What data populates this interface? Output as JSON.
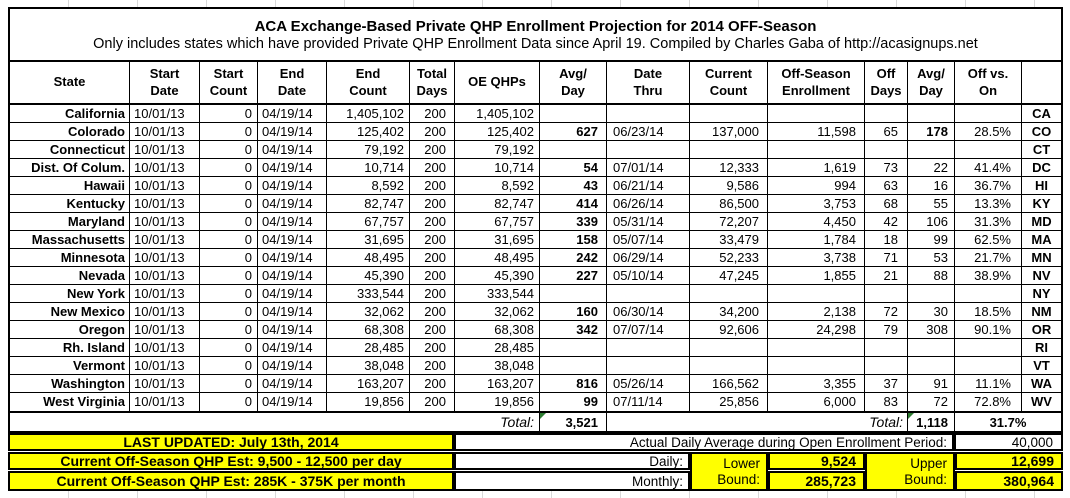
{
  "title": {
    "line1": "ACA Exchange-Based Private QHP Enrollment Projection for 2014 OFF-Season",
    "line2": "Only includes states which have provided Private QHP Enrollment Data since April 19. Compiled by Charles Gaba of http://acasignups.net"
  },
  "table": {
    "columns": [
      "State",
      "Start\nDate",
      "Start\nCount",
      "End\nDate",
      "End\nCount",
      "Total\nDays",
      "OE QHPs",
      "Avg/\nDay",
      "Date\nThru",
      "Current\nCount",
      "Off-Season\nEnrollment",
      "Off\nDays",
      "Avg/\nDay",
      "Off vs.\nOn",
      ""
    ],
    "rows": [
      [
        "California",
        "10/01/13",
        "0",
        "04/19/14",
        "1,405,102",
        "200",
        "1,405,102",
        "",
        "",
        "",
        "",
        "",
        "",
        "",
        "CA"
      ],
      [
        "Colorado",
        "10/01/13",
        "0",
        "04/19/14",
        "125,402",
        "200",
        "125,402",
        "627",
        "06/23/14",
        "137,000",
        "11,598",
        "65",
        "178",
        "28.5%",
        "CO"
      ],
      [
        "Connecticut",
        "10/01/13",
        "0",
        "04/19/14",
        "79,192",
        "200",
        "79,192",
        "",
        "",
        "",
        "",
        "",
        "",
        "",
        "CT"
      ],
      [
        "Dist. Of Colum.",
        "10/01/13",
        "0",
        "04/19/14",
        "10,714",
        "200",
        "10,714",
        "54",
        "07/01/14",
        "12,333",
        "1,619",
        "73",
        "22",
        "41.4%",
        "DC"
      ],
      [
        "Hawaii",
        "10/01/13",
        "0",
        "04/19/14",
        "8,592",
        "200",
        "8,592",
        "43",
        "06/21/14",
        "9,586",
        "994",
        "63",
        "16",
        "36.7%",
        "HI"
      ],
      [
        "Kentucky",
        "10/01/13",
        "0",
        "04/19/14",
        "82,747",
        "200",
        "82,747",
        "414",
        "06/26/14",
        "86,500",
        "3,753",
        "68",
        "55",
        "13.3%",
        "KY"
      ],
      [
        "Maryland",
        "10/01/13",
        "0",
        "04/19/14",
        "67,757",
        "200",
        "67,757",
        "339",
        "05/31/14",
        "72,207",
        "4,450",
        "42",
        "106",
        "31.3%",
        "MD"
      ],
      [
        "Massachusetts",
        "10/01/13",
        "0",
        "04/19/14",
        "31,695",
        "200",
        "31,695",
        "158",
        "05/07/14",
        "33,479",
        "1,784",
        "18",
        "99",
        "62.5%",
        "MA"
      ],
      [
        "Minnesota",
        "10/01/13",
        "0",
        "04/19/14",
        "48,495",
        "200",
        "48,495",
        "242",
        "06/29/14",
        "52,233",
        "3,738",
        "71",
        "53",
        "21.7%",
        "MN"
      ],
      [
        "Nevada",
        "10/01/13",
        "0",
        "04/19/14",
        "45,390",
        "200",
        "45,390",
        "227",
        "05/10/14",
        "47,245",
        "1,855",
        "21",
        "88",
        "38.9%",
        "NV"
      ],
      [
        "New York",
        "10/01/13",
        "0",
        "04/19/14",
        "333,544",
        "200",
        "333,544",
        "",
        "",
        "",
        "",
        "",
        "",
        "",
        "NY"
      ],
      [
        "New Mexico",
        "10/01/13",
        "0",
        "04/19/14",
        "32,062",
        "200",
        "32,062",
        "160",
        "06/30/14",
        "34,200",
        "2,138",
        "72",
        "30",
        "18.5%",
        "NM"
      ],
      [
        "Oregon",
        "10/01/13",
        "0",
        "04/19/14",
        "68,308",
        "200",
        "68,308",
        "342",
        "07/07/14",
        "92,606",
        "24,298",
        "79",
        "308",
        "90.1%",
        "OR"
      ],
      [
        "Rh. Island",
        "10/01/13",
        "0",
        "04/19/14",
        "28,485",
        "200",
        "28,485",
        "",
        "",
        "",
        "",
        "",
        "",
        "",
        "RI"
      ],
      [
        "Vermont",
        "10/01/13",
        "0",
        "04/19/14",
        "38,048",
        "200",
        "38,048",
        "",
        "",
        "",
        "",
        "",
        "",
        "",
        "VT"
      ],
      [
        "Washington",
        "10/01/13",
        "0",
        "04/19/14",
        "163,207",
        "200",
        "163,207",
        "816",
        "05/26/14",
        "166,562",
        "3,355",
        "37",
        "91",
        "11.1%",
        "WA"
      ],
      [
        "West Virginia",
        "10/01/13",
        "0",
        "04/19/14",
        "19,856",
        "200",
        "19,856",
        "99",
        "07/11/14",
        "25,856",
        "6,000",
        "83",
        "72",
        "72.8%",
        "WV"
      ]
    ],
    "emphasis": [
      [
        1,
        12
      ]
    ],
    "totals": {
      "oe_label": "Total:",
      "oe_avg_day": "3,521",
      "off_label": "Total:",
      "off_avg_day": "1,118",
      "off_vs_on": "31.7%"
    }
  },
  "footer": {
    "last_updated": "LAST UPDATED: July 13th, 2014",
    "daily_estimate": "Current Off-Season QHP Est: 9,500 - 12,500 per day",
    "monthly_estimate": "Current Off-Season QHP Est: 285K - 375K per month",
    "actual_daily_avg_label": "Actual Daily Average during Open Enrollment Period:",
    "actual_daily_avg_value": "40,000",
    "daily_label": "Daily:",
    "monthly_label": "Monthly:",
    "lower_bound_label": "Lower\nBound:",
    "upper_bound_label": "Upper\nBound:",
    "daily_lower": "9,524",
    "daily_upper": "12,699",
    "monthly_lower": "285,723",
    "monthly_upper": "380,964"
  },
  "colors": {
    "highlight_yellow": "#ffff00",
    "formula_flag_green": "#2e7d32",
    "grid_line": "#000000",
    "sheet_gridline": "#d9d9d9"
  }
}
